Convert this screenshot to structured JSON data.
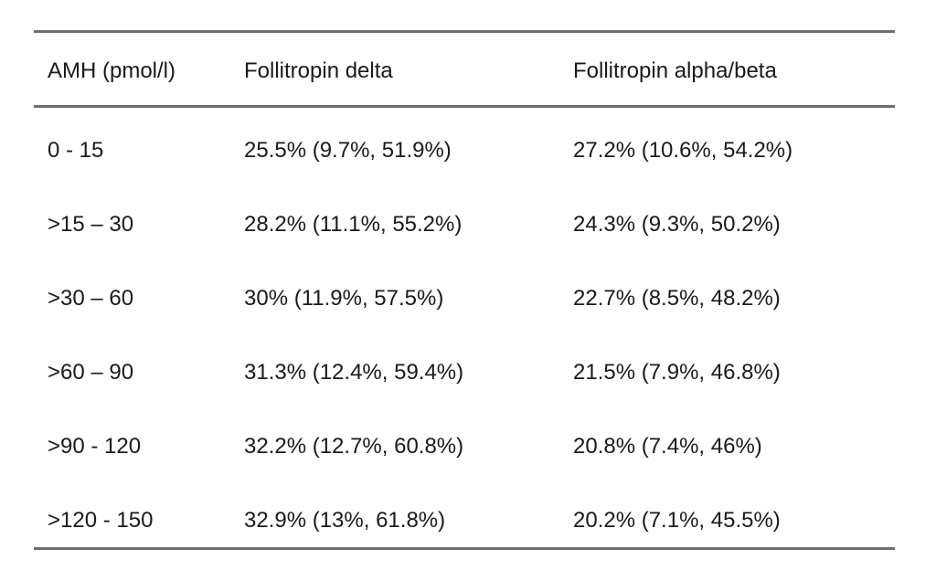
{
  "table": {
    "columns": [
      "AMH (pmol/l)",
      "Follitropin delta",
      "Follitropin alpha/beta"
    ],
    "rows": [
      [
        "0 - 15",
        "25.5% (9.7%, 51.9%)",
        "27.2% (10.6%, 54.2%)"
      ],
      [
        ">15 – 30",
        "28.2% (11.1%, 55.2%)",
        "24.3% (9.3%, 50.2%)"
      ],
      [
        ">30 – 60",
        "30% (11.9%, 57.5%)",
        "22.7% (8.5%, 48.2%)"
      ],
      [
        ">60 – 90",
        "31.3% (12.4%, 59.4%)",
        "21.5% (7.9%, 46.8%)"
      ],
      [
        ">90 - 120",
        "32.2% (12.7%, 60.8%)",
        "20.8% (7.4%, 46%)"
      ],
      [
        ">120 - 150",
        "32.9% (13%, 61.8%)",
        "20.2% (7.1%, 45.5%)"
      ]
    ]
  }
}
